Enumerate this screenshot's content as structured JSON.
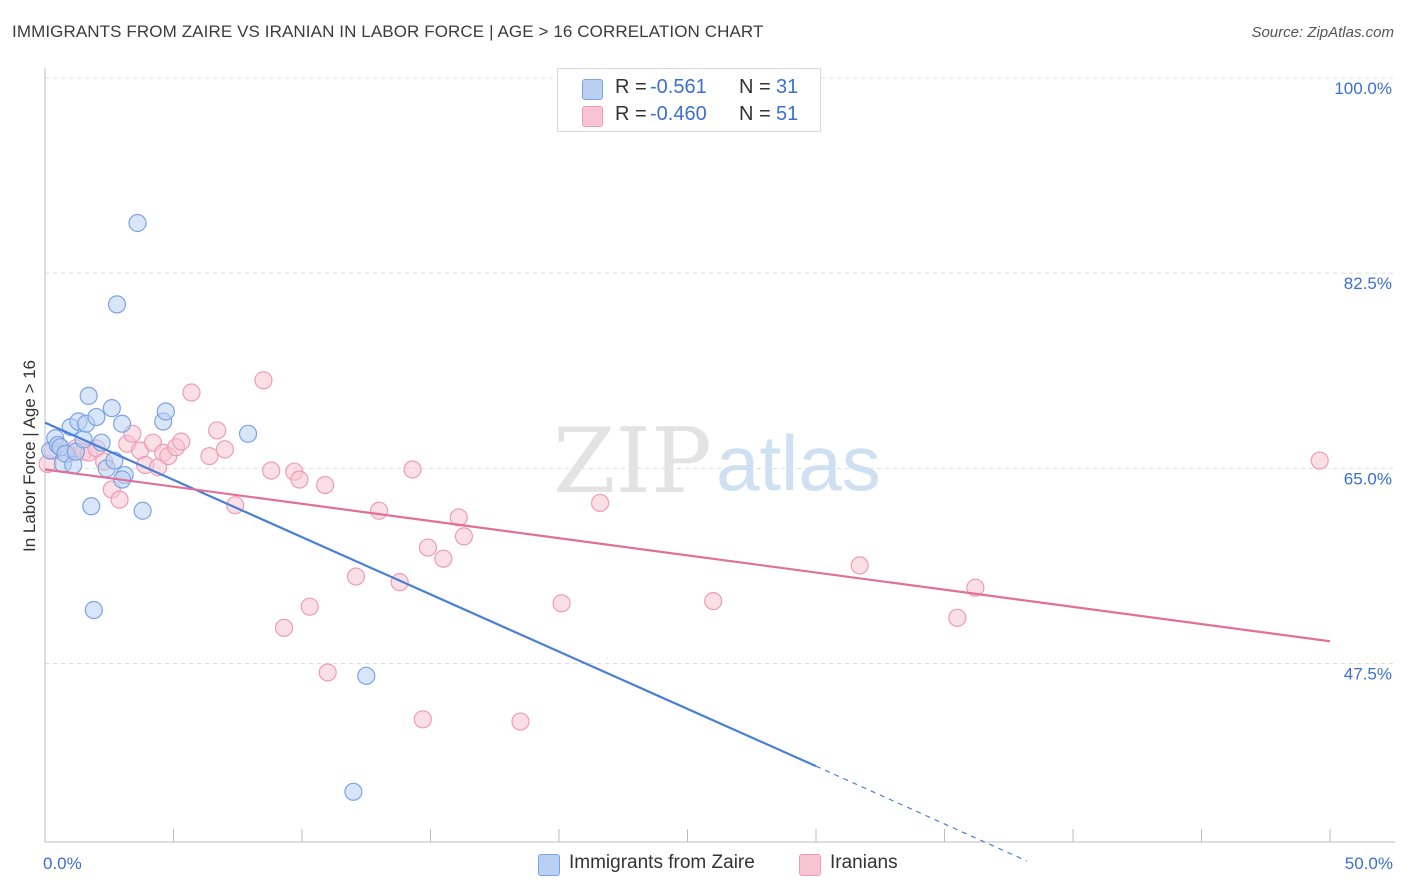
{
  "header": {
    "title": "IMMIGRANTS FROM ZAIRE VS IRANIAN IN LABOR FORCE | AGE > 16 CORRELATION CHART",
    "source": "Source: ZipAtlas.com"
  },
  "watermark": {
    "zip": "ZIP",
    "atlas": "atlas"
  },
  "colors": {
    "blue": "#4a7fd8",
    "blue_fill": "#b9d0f3",
    "blue_stroke": "#7aa4e6",
    "pink": "#e07098",
    "pink_fill": "#f8c4d4",
    "pink_stroke": "#ef9bb7",
    "axis_text": "#3b6fd1",
    "grid": "#dcdcdc"
  },
  "legend": {
    "rows": [
      {
        "r_label": "R =",
        "r_value": "-0.561",
        "n_label": "N =",
        "n_value": "31"
      },
      {
        "r_label": "R =",
        "r_value": "-0.460",
        "n_label": "N =",
        "n_value": "51"
      }
    ]
  },
  "bottom_legend": {
    "blue": "Immigrants from Zaire",
    "pink": "Iranians"
  },
  "chart_data": {
    "type": "scatter",
    "xlabel": "",
    "ylabel": "In Labor Force | Age > 16",
    "xlim": [
      0,
      50
    ],
    "ylim": [
      31.5,
      100
    ],
    "x_tick_labels": [
      {
        "value": 0,
        "label": "0.0%"
      },
      {
        "value": 50,
        "label": "50.0%"
      }
    ],
    "y_ticks": [
      47.5,
      65.0,
      82.5,
      100.0
    ],
    "y_tick_labels": [
      "47.5%",
      "65.0%",
      "82.5%",
      "100.0%"
    ],
    "grid": "horizontal dashed",
    "legend_position": "top-center",
    "series": [
      {
        "name": "Immigrants from Zaire",
        "color": "blue",
        "points": [
          [
            0.2,
            66.6
          ],
          [
            0.4,
            67.7
          ],
          [
            0.5,
            67.1
          ],
          [
            0.6,
            66.9
          ],
          [
            0.7,
            65.4
          ],
          [
            0.8,
            66.3
          ],
          [
            1.0,
            68.7
          ],
          [
            1.1,
            65.3
          ],
          [
            1.2,
            66.5
          ],
          [
            1.3,
            69.2
          ],
          [
            1.5,
            67.6
          ],
          [
            1.6,
            69.0
          ],
          [
            1.7,
            71.5
          ],
          [
            1.8,
            61.6
          ],
          [
            1.9,
            52.3
          ],
          [
            2.0,
            69.6
          ],
          [
            2.2,
            67.3
          ],
          [
            2.4,
            65.0
          ],
          [
            2.6,
            70.4
          ],
          [
            2.7,
            65.7
          ],
          [
            2.8,
            79.7
          ],
          [
            3.0,
            69.0
          ],
          [
            3.1,
            64.4
          ],
          [
            3.6,
            87.0
          ],
          [
            3.8,
            61.2
          ],
          [
            4.6,
            69.2
          ],
          [
            4.7,
            70.1
          ],
          [
            7.9,
            68.1
          ],
          [
            12.5,
            46.4
          ],
          [
            12.0,
            36.0
          ],
          [
            3.0,
            64.0
          ]
        ],
        "trend": {
          "x": [
            0,
            30
          ],
          "y": [
            69.1,
            38.3
          ],
          "dashed_to": [
            38.2,
            29.8
          ]
        }
      },
      {
        "name": "Iranians",
        "color": "pink",
        "points": [
          [
            0.1,
            65.4
          ],
          [
            0.3,
            66.6
          ],
          [
            0.5,
            67.1
          ],
          [
            0.9,
            66.3
          ],
          [
            1.2,
            66.8
          ],
          [
            1.5,
            66.5
          ],
          [
            1.7,
            66.4
          ],
          [
            2.0,
            66.8
          ],
          [
            2.3,
            65.6
          ],
          [
            2.6,
            63.1
          ],
          [
            2.9,
            62.2
          ],
          [
            3.2,
            67.2
          ],
          [
            3.4,
            68.1
          ],
          [
            3.7,
            66.6
          ],
          [
            3.9,
            65.3
          ],
          [
            4.2,
            67.3
          ],
          [
            4.4,
            65.1
          ],
          [
            4.6,
            66.4
          ],
          [
            4.8,
            66.1
          ],
          [
            5.1,
            66.9
          ],
          [
            5.3,
            67.4
          ],
          [
            5.7,
            71.8
          ],
          [
            6.4,
            66.1
          ],
          [
            6.7,
            68.4
          ],
          [
            7.0,
            66.7
          ],
          [
            7.4,
            61.7
          ],
          [
            8.5,
            72.9
          ],
          [
            8.8,
            64.8
          ],
          [
            9.3,
            50.7
          ],
          [
            9.7,
            64.7
          ],
          [
            9.9,
            64.0
          ],
          [
            10.3,
            52.6
          ],
          [
            10.9,
            63.5
          ],
          [
            11.0,
            46.7
          ],
          [
            12.1,
            55.3
          ],
          [
            13.0,
            61.2
          ],
          [
            13.8,
            54.8
          ],
          [
            14.3,
            64.9
          ],
          [
            14.7,
            42.5
          ],
          [
            14.9,
            57.9
          ],
          [
            15.5,
            56.9
          ],
          [
            16.1,
            60.6
          ],
          [
            16.3,
            58.9
          ],
          [
            18.5,
            42.3
          ],
          [
            20.1,
            52.9
          ],
          [
            21.6,
            61.9
          ],
          [
            26.0,
            53.1
          ],
          [
            31.7,
            56.3
          ],
          [
            35.5,
            51.6
          ],
          [
            36.2,
            54.3
          ],
          [
            49.6,
            65.7
          ]
        ],
        "trend": {
          "x": [
            0,
            50
          ],
          "y": [
            64.9,
            49.5
          ]
        }
      }
    ]
  }
}
